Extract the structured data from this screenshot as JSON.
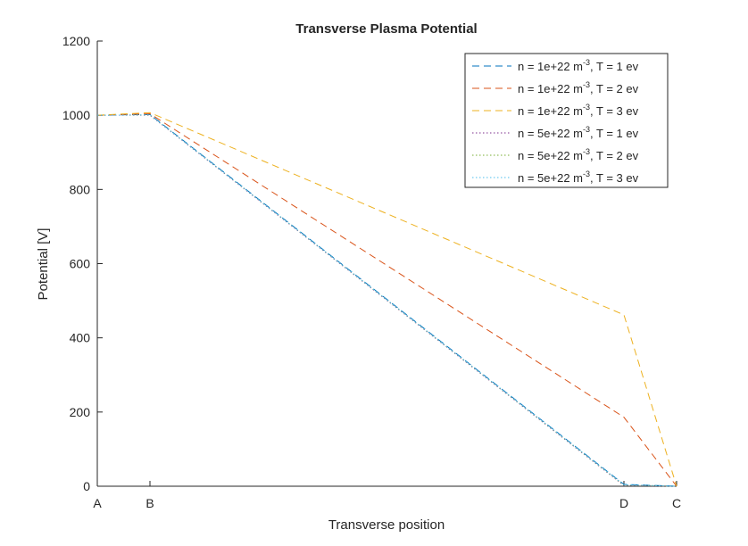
{
  "chart_data": {
    "type": "line",
    "title": "Transverse Plasma Potential",
    "xlabel": "Transverse position",
    "ylabel": "Potential [V]",
    "x_categories": [
      "A",
      "B",
      "D",
      "C"
    ],
    "x_positions": [
      0,
      1,
      10,
      11
    ],
    "xlim": [
      0,
      11
    ],
    "ylim": [
      0,
      1200
    ],
    "yticks": [
      0,
      200,
      400,
      600,
      800,
      1000,
      1200
    ],
    "grid": false,
    "legend_position": "top-right",
    "series": [
      {
        "name_parts": [
          "n = 1e+22 m",
          "-3",
          ", T = 1 ev"
        ],
        "color": "#0072BD",
        "dash": "dashed",
        "values": [
          1000,
          1002,
          5,
          0
        ]
      },
      {
        "name_parts": [
          "n = 1e+22 m",
          "-3",
          ", T = 2 ev"
        ],
        "color": "#D95319",
        "dash": "dashed",
        "values": [
          1000,
          1004,
          186,
          0
        ]
      },
      {
        "name_parts": [
          "n = 1e+22 m",
          "-3",
          ", T = 3 ev"
        ],
        "color": "#EDB120",
        "dash": "dashed",
        "values": [
          1000,
          1007,
          462,
          0
        ]
      },
      {
        "name_parts": [
          "n = 5e+22 m",
          "-3",
          ", T = 1 ev"
        ],
        "color": "#7E2F8E",
        "dash": "dotted",
        "values": [
          1000,
          1000,
          2,
          0
        ]
      },
      {
        "name_parts": [
          "n = 5e+22 m",
          "-3",
          ", T = 2 ev"
        ],
        "color": "#77AC30",
        "dash": "dotted",
        "values": [
          1000,
          1001,
          3,
          0
        ]
      },
      {
        "name_parts": [
          "n = 5e+22 m",
          "-3",
          ", T = 3 ev"
        ],
        "color": "#4DBEEE",
        "dash": "dotted",
        "values": [
          1000,
          1001,
          4,
          0
        ]
      }
    ]
  }
}
